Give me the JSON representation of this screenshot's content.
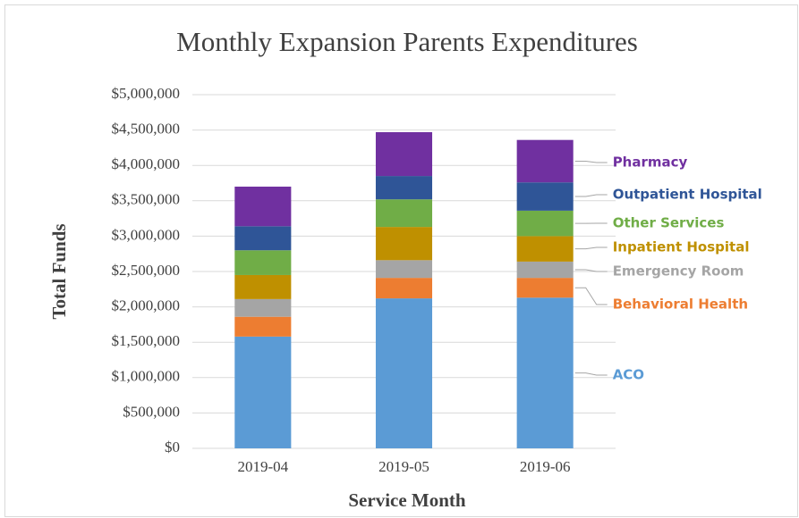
{
  "chart_data": {
    "type": "stacked_bar",
    "title": "Monthly Expansion Parents Expenditures",
    "x_label": "Service Month",
    "y_label": "Total Funds",
    "categories": [
      "2019-04",
      "2019-05",
      "2019-06"
    ],
    "series": [
      {
        "name": "ACO",
        "color": "#5b9bd5",
        "values": [
          1580000,
          2120000,
          2130000
        ]
      },
      {
        "name": "Behavioral Health",
        "color": "#ed7d31",
        "values": [
          280000,
          290000,
          280000
        ]
      },
      {
        "name": "Emergency Room",
        "color": "#a5a5a5",
        "values": [
          250000,
          250000,
          230000
        ]
      },
      {
        "name": "Inpatient Hospital",
        "color": "#bf9000",
        "values": [
          340000,
          470000,
          360000
        ]
      },
      {
        "name": "Other Services",
        "color": "#70ad47",
        "values": [
          350000,
          390000,
          360000
        ]
      },
      {
        "name": "Outpatient Hospital",
        "color": "#2f5597",
        "values": [
          340000,
          330000,
          400000
        ]
      },
      {
        "name": "Pharmacy",
        "color": "#7030a0",
        "values": [
          560000,
          620000,
          600000
        ]
      }
    ],
    "ylim": [
      0,
      5000000
    ],
    "yticks": [
      {
        "value": 0,
        "label": "$0"
      },
      {
        "value": 500000,
        "label": "$500,000"
      },
      {
        "value": 1000000,
        "label": "$1,000,000"
      },
      {
        "value": 1500000,
        "label": "$1,500,000"
      },
      {
        "value": 2000000,
        "label": "$2,000,000"
      },
      {
        "value": 2500000,
        "label": "$2,500,000"
      },
      {
        "value": 3000000,
        "label": "$3,000,000"
      },
      {
        "value": 3500000,
        "label": "$3,500,000"
      },
      {
        "value": 4000000,
        "label": "$4,000,000"
      },
      {
        "value": 4500000,
        "label": "$4,500,000"
      },
      {
        "value": 5000000,
        "label": "$5,000,000"
      }
    ],
    "grid": true
  }
}
